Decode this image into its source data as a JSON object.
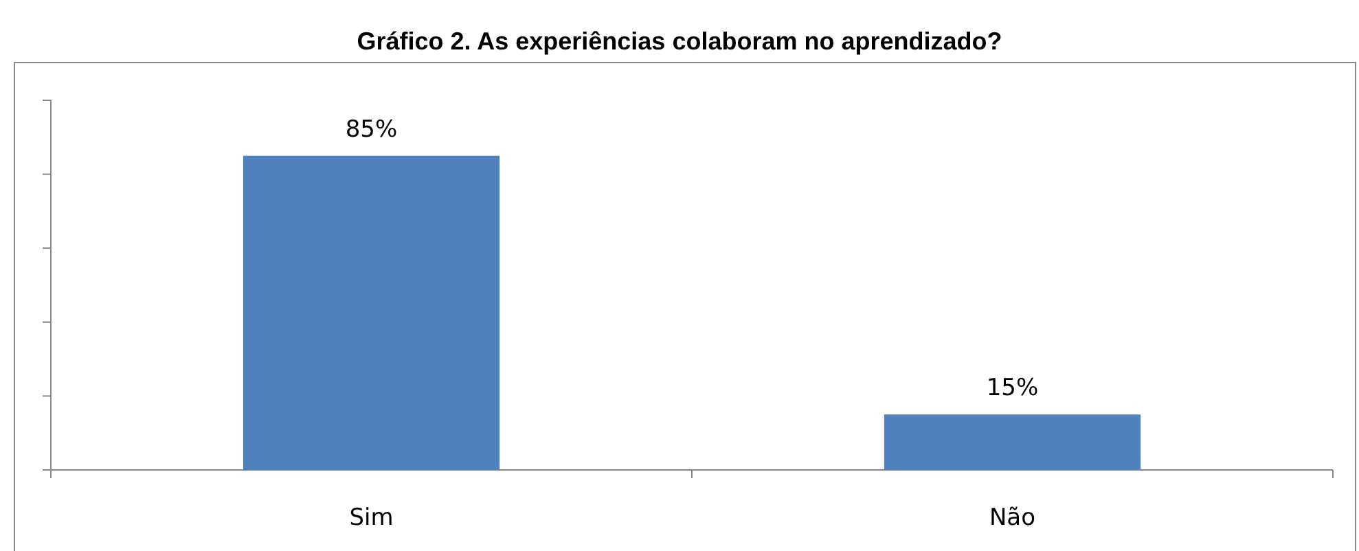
{
  "chart_data": {
    "type": "bar",
    "title": "Gráfico 2. As experiências colaboram no aprendizado?",
    "categories": [
      "Sim",
      "Não"
    ],
    "values": [
      85,
      15
    ],
    "color": "#4f81bd",
    "value_labels": [
      "85%",
      "15%"
    ],
    "ylim": [
      0,
      100
    ],
    "yticks": [
      {
        "value": 0,
        "label": null
      },
      {
        "value": 20,
        "label": null
      },
      {
        "value": 40,
        "label": null
      },
      {
        "value": 60,
        "label": null
      },
      {
        "value": 80,
        "label": null
      },
      {
        "value": 100,
        "label": null
      }
    ],
    "tick_labels": "x",
    "grid": false
  }
}
